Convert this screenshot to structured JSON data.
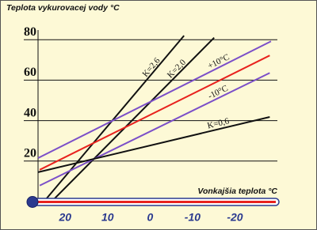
{
  "chart_data": {
    "type": "line",
    "title": "Teplota vykurovacej vody °C",
    "x_label": "Vonkajšia teplota °C",
    "xlim": [
      26.4,
      -30
    ],
    "xticks": [
      20,
      10,
      0,
      -10,
      -20
    ],
    "ylim": [
      0,
      84
    ],
    "yticks": [
      20,
      40,
      60,
      80
    ],
    "grid": true,
    "series": [
      {
        "name": "K=2,6",
        "color": "#111111",
        "x": [
          25,
          -8
        ],
        "values": [
          0,
          82
        ]
      },
      {
        "name": "K=2,0",
        "color": "#111111",
        "x": [
          23.2,
          -15.1
        ],
        "values": [
          0,
          81
        ]
      },
      {
        "name": "+10°C",
        "color": "#7b4fc8",
        "x": [
          26.4,
          -28.5
        ],
        "values": [
          21.5,
          79.2
        ]
      },
      {
        "color": "#e8221e",
        "x": [
          26,
          -28.2
        ],
        "values": [
          15.7,
          72.2
        ]
      },
      {
        "name": "-10°C",
        "color": "#7b4fc8",
        "x": [
          26,
          -28.2
        ],
        "values": [
          7.9,
          63.6
        ]
      },
      {
        "name": "K=0,6",
        "color": "#111111",
        "x": [
          26.4,
          -28.2
        ],
        "values": [
          14.5,
          41.8
        ]
      }
    ]
  }
}
